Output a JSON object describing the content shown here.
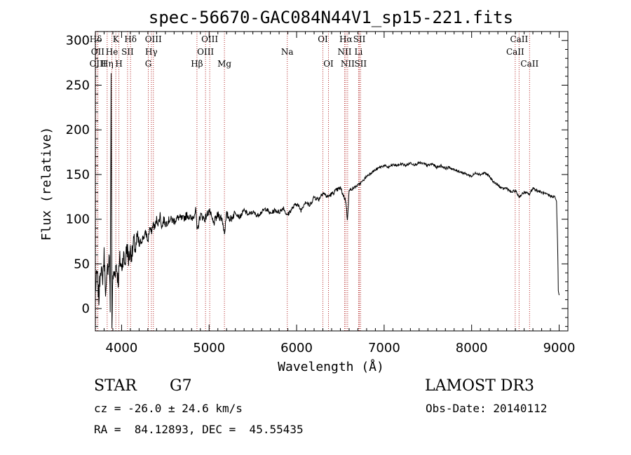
{
  "chart_data": {
    "type": "line",
    "title": "spec-56670-GAC084N44V1_sp15-221.fits",
    "xlabel": "Wavelength (Å)",
    "ylabel": "Flux (relative)",
    "xlim": [
      3700,
      9100
    ],
    "ylim": [
      -25,
      310
    ],
    "xticks": [
      4000,
      5000,
      6000,
      7000,
      8000,
      9000
    ],
    "yticks": [
      0,
      50,
      100,
      150,
      200,
      250,
      300
    ],
    "series": [
      {
        "name": "flux",
        "x": [
          3700,
          3720,
          3740,
          3760,
          3780,
          3800,
          3820,
          3840,
          3860,
          3870,
          3880,
          3890,
          3900,
          3920,
          3940,
          3960,
          3980,
          4000,
          4020,
          4040,
          4060,
          4080,
          4100,
          4120,
          4140,
          4160,
          4180,
          4200,
          4220,
          4250,
          4280,
          4300,
          4320,
          4340,
          4360,
          4380,
          4400,
          4420,
          4440,
          4460,
          4480,
          4500,
          4550,
          4600,
          4650,
          4700,
          4750,
          4800,
          4850,
          4861,
          4900,
          4950,
          5000,
          5050,
          5100,
          5150,
          5175,
          5200,
          5250,
          5300,
          5350,
          5400,
          5450,
          5500,
          5550,
          5600,
          5650,
          5700,
          5750,
          5800,
          5850,
          5890,
          5950,
          6000,
          6050,
          6100,
          6150,
          6200,
          6250,
          6300,
          6350,
          6400,
          6450,
          6500,
          6563,
          6580,
          6600,
          6650,
          6700,
          6750,
          6800,
          6850,
          6900,
          6950,
          7000,
          7050,
          7100,
          7150,
          7200,
          7250,
          7300,
          7350,
          7400,
          7450,
          7500,
          7550,
          7600,
          7650,
          7700,
          7750,
          7800,
          7850,
          7900,
          7950,
          8000,
          8050,
          8100,
          8150,
          8200,
          8250,
          8300,
          8350,
          8400,
          8450,
          8500,
          8542,
          8600,
          8662,
          8700,
          8750,
          8800,
          8850,
          8900,
          8950,
          8970,
          8985,
          8990,
          9000
        ],
        "y": [
          20,
          40,
          10,
          50,
          30,
          60,
          15,
          45,
          60,
          0,
          270,
          -20,
          35,
          40,
          50,
          30,
          55,
          45,
          60,
          50,
          70,
          55,
          65,
          60,
          75,
          65,
          80,
          70,
          75,
          80,
          85,
          75,
          90,
          85,
          95,
          90,
          100,
          95,
          105,
          90,
          100,
          95,
          100,
          98,
          102,
          100,
          105,
          100,
          110,
          85,
          105,
          100,
          110,
          95,
          105,
          100,
          85,
          105,
          100,
          108,
          102,
          110,
          105,
          108,
          104,
          108,
          112,
          106,
          110,
          108,
          113,
          104,
          112,
          118,
          110,
          120,
          115,
          125,
          122,
          130,
          125,
          128,
          132,
          135,
          120,
          100,
          132,
          135,
          138,
          142,
          148,
          152,
          155,
          158,
          160,
          158,
          161,
          160,
          162,
          160,
          163,
          161,
          163,
          162,
          160,
          162,
          158,
          160,
          157,
          158,
          155,
          154,
          152,
          150,
          148,
          152,
          150,
          152,
          148,
          142,
          138,
          134,
          135,
          130,
          132,
          125,
          130,
          128,
          135,
          132,
          130,
          128,
          126,
          125,
          120,
          60,
          20,
          15
        ]
      }
    ],
    "spectral_lines": [
      {
        "label": "Hδ",
        "wl": 3705,
        "row": 1
      },
      {
        "label": "OII",
        "wl": 3727,
        "row": 2
      },
      {
        "label": "OIII",
        "wl": 3729,
        "row": 3
      },
      {
        "label": "K",
        "wl": 3934,
        "row": 1
      },
      {
        "label": "He",
        "wl": 3889,
        "row": 2
      },
      {
        "label": "Hη",
        "wl": 3835,
        "row": 3
      },
      {
        "label": "SII",
        "wl": 4068,
        "row": 2
      },
      {
        "label": "H",
        "wl": 3969,
        "row": 3
      },
      {
        "label": "Hδ",
        "wl": 4102,
        "row": 1
      },
      {
        "label": "OIII",
        "wl": 4363,
        "row": 1
      },
      {
        "label": "Hγ",
        "wl": 4340,
        "row": 2
      },
      {
        "label": "G",
        "wl": 4305,
        "row": 3
      },
      {
        "label": "Hβ",
        "wl": 4861,
        "row": 3
      },
      {
        "label": "OIII",
        "wl": 5007,
        "row": 1
      },
      {
        "label": "OIII",
        "wl": 4959,
        "row": 2
      },
      {
        "label": "Mg",
        "wl": 5175,
        "row": 3
      },
      {
        "label": "Na",
        "wl": 5893,
        "row": 2
      },
      {
        "label": "OI",
        "wl": 6300,
        "row": 1
      },
      {
        "label": "OI",
        "wl": 6364,
        "row": 3
      },
      {
        "label": "Hα",
        "wl": 6563,
        "row": 1
      },
      {
        "label": "NII",
        "wl": 6548,
        "row": 2
      },
      {
        "label": "NII",
        "wl": 6583,
        "row": 3
      },
      {
        "label": "SII",
        "wl": 6717,
        "row": 1
      },
      {
        "label": "Li",
        "wl": 6708,
        "row": 2
      },
      {
        "label": "SII",
        "wl": 6731,
        "row": 3
      },
      {
        "label": "CaII",
        "wl": 8542,
        "row": 1
      },
      {
        "label": "CaII",
        "wl": 8498,
        "row": 2
      },
      {
        "label": "CaII",
        "wl": 8662,
        "row": 3
      }
    ]
  },
  "info": {
    "object_type": "STAR",
    "subclass": "G7",
    "survey": "LAMOST DR3",
    "cz": "cz = -26.0 ± 24.6 km/s",
    "obs_date": "Obs-Date: 20140112",
    "coords": "RA =  84.12893, DEC =  45.55435"
  },
  "colors": {
    "line_marker": "#b22222",
    "spectrum": "#000000",
    "axis": "#000000"
  }
}
